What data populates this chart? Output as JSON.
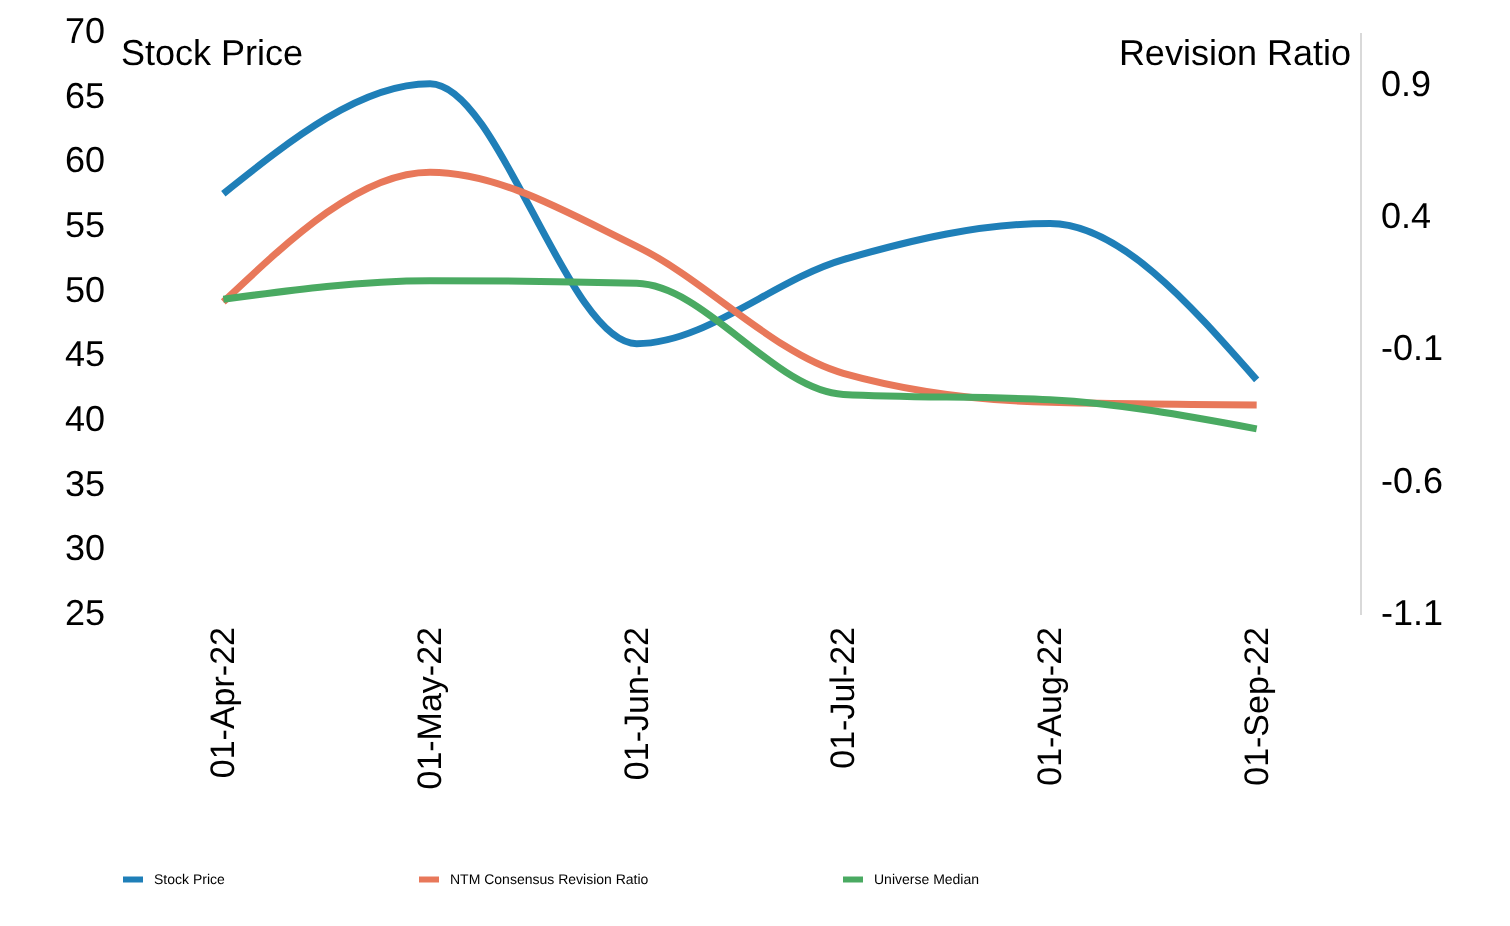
{
  "chart_data": {
    "type": "line",
    "ylabel": "Stock Price",
    "y2label": "Revision Ratio",
    "categories": [
      "01-Apr-22",
      "01-May-22",
      "01-Jun-22",
      "01-Jul-22",
      "01-Aug-22",
      "01-Sep-22"
    ],
    "series": [
      {
        "name": "Stock Price",
        "color": "#1f7fb8",
        "values": [
          57.5,
          66,
          45.9,
          52.4,
          55.2,
          43.1
        ]
      },
      {
        "name": "NTM Consensus Revision Ratio",
        "color": "#e8785a",
        "axis": "y2",
        "values": [
          0.08,
          0.57,
          0.29,
          -0.19,
          -0.3,
          -0.31
        ]
      },
      {
        "name": "Universe Median",
        "color": "#4aaa62",
        "axis": "y2",
        "values": [
          0.09,
          0.16,
          0.15,
          -0.27,
          -0.29,
          -0.4
        ]
      }
    ],
    "ylim": [
      25,
      70
    ],
    "yticks": [
      25,
      30,
      35,
      40,
      45,
      50,
      55,
      60,
      65,
      70
    ],
    "y2lim": [
      -1.1,
      1.1
    ],
    "y2ticks": [
      -1.1,
      -0.6,
      -0.1,
      0.4,
      0.9
    ],
    "grid": false,
    "legend": "bottom",
    "marker": "none",
    "line_style": "solid"
  }
}
